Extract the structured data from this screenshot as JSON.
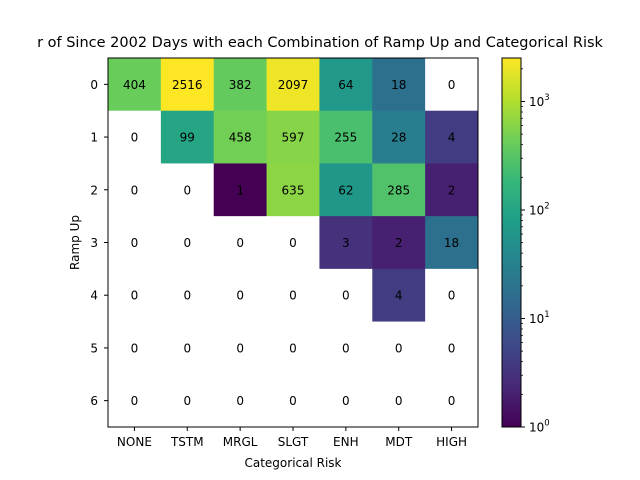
{
  "chart_data": {
    "type": "heatmap",
    "title": "r of Since 2002 Days with each Combination of Ramp Up and Categorical Risk",
    "xlabel": "Categorical Risk",
    "ylabel": "Ramp Up",
    "x_categories": [
      "NONE",
      "TSTM",
      "MRGL",
      "SLGT",
      "ENH",
      "MDT",
      "HIGH"
    ],
    "y_categories": [
      "0",
      "1",
      "2",
      "3",
      "4",
      "5",
      "6"
    ],
    "values": [
      [
        404,
        2516,
        382,
        2097,
        64,
        18,
        0
      ],
      [
        0,
        99,
        458,
        597,
        255,
        28,
        4
      ],
      [
        0,
        0,
        1,
        635,
        62,
        285,
        2
      ],
      [
        0,
        0,
        0,
        0,
        3,
        2,
        18
      ],
      [
        0,
        0,
        0,
        0,
        0,
        4,
        0
      ],
      [
        0,
        0,
        0,
        0,
        0,
        0,
        0
      ],
      [
        0,
        0,
        0,
        0,
        0,
        0,
        0
      ]
    ],
    "color_scale": "log",
    "colormap": "viridis",
    "zero_color": "#ffffff",
    "colorbar_range": [
      1,
      2516
    ],
    "colorbar_ticks": [
      {
        "value": 1,
        "base": "10",
        "exp": "0"
      },
      {
        "value": 10,
        "base": "10",
        "exp": "1"
      },
      {
        "value": 100,
        "base": "10",
        "exp": "2"
      },
      {
        "value": 1000,
        "base": "10",
        "exp": "3"
      }
    ],
    "grid": false
  }
}
